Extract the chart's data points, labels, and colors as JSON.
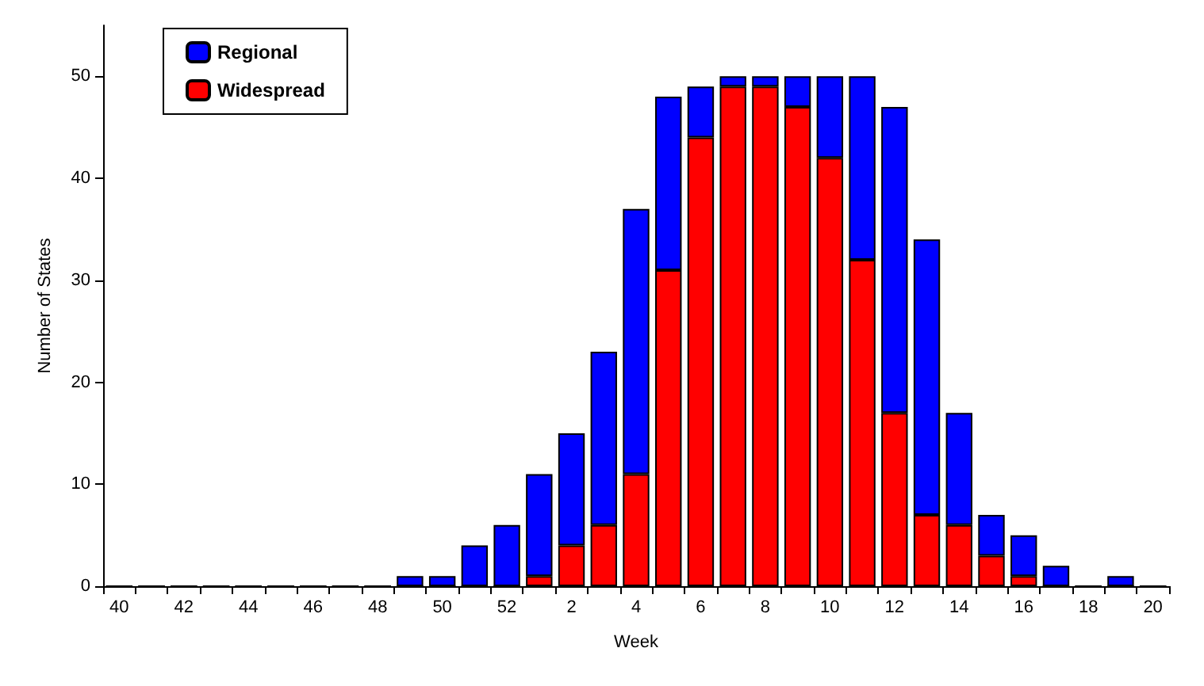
{
  "chart_data": {
    "type": "bar",
    "stacked": true,
    "xlabel": "Week",
    "ylabel": "Number of States",
    "categories": [
      "40",
      null,
      "42",
      null,
      "44",
      null,
      "46",
      null,
      "48",
      null,
      "50",
      null,
      "52",
      null,
      "2",
      null,
      "4",
      null,
      "6",
      null,
      "8",
      null,
      "10",
      null,
      "12",
      null,
      "14",
      null,
      "16",
      null,
      "18",
      null,
      "20"
    ],
    "series": [
      {
        "name": "Widespread",
        "color": "#ff0000",
        "values": [
          0,
          0,
          0,
          0,
          0,
          0,
          0,
          0,
          0,
          0,
          0,
          0,
          0,
          1,
          4,
          6,
          11,
          31,
          44,
          49,
          49,
          47,
          42,
          32,
          17,
          7,
          6,
          3,
          1,
          0,
          0,
          0,
          0
        ]
      },
      {
        "name": "Regional",
        "color": "#0000ff",
        "values": [
          0,
          0,
          0,
          0,
          0,
          0,
          0,
          0,
          0,
          1,
          1,
          4,
          6,
          10,
          11,
          17,
          26,
          17,
          5,
          1,
          1,
          3,
          8,
          18,
          30,
          27,
          11,
          4,
          4,
          2,
          0,
          1,
          0
        ]
      }
    ],
    "ylim": [
      0,
      55
    ],
    "yticks": [
      0,
      10,
      20,
      30,
      40,
      50
    ],
    "grid": false,
    "legend": "top left"
  }
}
